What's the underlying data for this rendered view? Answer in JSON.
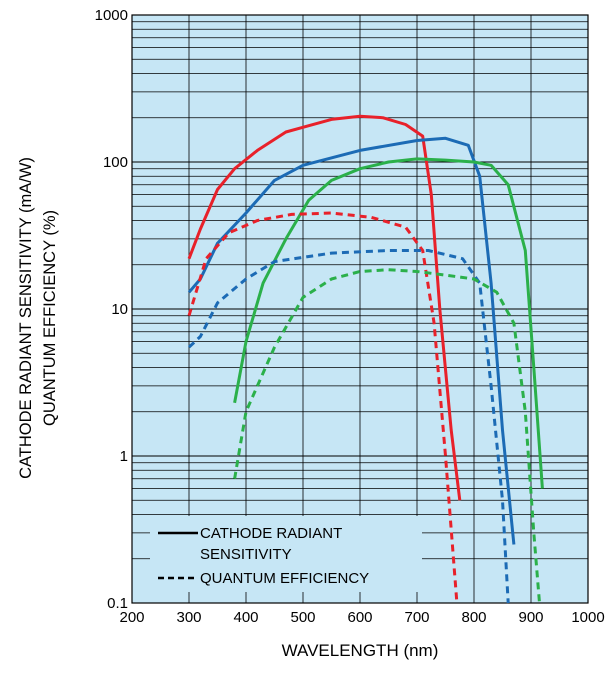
{
  "chart_data": {
    "type": "line",
    "xlabel": "WAVELENGTH (nm)",
    "ylabel_lines": [
      "CATHODE RADIANT SENSITIVITY (mA/W)",
      "QUANTUM EFFICIENCY (%)"
    ],
    "xlim": [
      200,
      1000
    ],
    "ylim": [
      0.1,
      1000
    ],
    "yscale": "log",
    "x_ticks": [
      200,
      300,
      400,
      500,
      600,
      700,
      800,
      900,
      1000
    ],
    "x_tick_labels": [
      "200",
      "300",
      "400",
      "500",
      "600",
      "700",
      "800",
      "900",
      "1000"
    ],
    "y_ticks": [
      0.1,
      1,
      10,
      100,
      1000
    ],
    "y_tick_labels": [
      "0.1",
      "1",
      "10",
      "100",
      "1000"
    ],
    "grid": true,
    "plot_background": "#c6e6f5",
    "legend": {
      "placement": "bottom-left",
      "entries": [
        {
          "style": "solid",
          "lines": [
            "CATHODE RADIANT",
            "SENSITIVITY"
          ]
        },
        {
          "style": "dashed",
          "lines": [
            "QUANTUM EFFICIENCY"
          ]
        }
      ]
    },
    "series": [
      {
        "style": "solid",
        "color": "#e8212a",
        "x": [
          300,
          320,
          350,
          380,
          420,
          470,
          550,
          600,
          640,
          680,
          710,
          725,
          740,
          760,
          775
        ],
        "y": [
          22,
          35,
          65,
          90,
          120,
          160,
          195,
          205,
          200,
          180,
          150,
          60,
          10,
          1.5,
          0.5
        ]
      },
      {
        "style": "solid",
        "color": "#1c6bb5",
        "x": [
          300,
          320,
          350,
          400,
          450,
          500,
          600,
          700,
          750,
          790,
          810,
          830,
          850,
          870
        ],
        "y": [
          13,
          16,
          28,
          45,
          75,
          95,
          120,
          140,
          145,
          130,
          80,
          15,
          1.5,
          0.25
        ]
      },
      {
        "style": "solid",
        "color": "#2bb04a",
        "x": [
          380,
          400,
          430,
          470,
          510,
          550,
          600,
          650,
          700,
          750,
          800,
          830,
          860,
          890,
          905,
          920
        ],
        "y": [
          2.3,
          6,
          15,
          30,
          55,
          75,
          90,
          100,
          105,
          103,
          100,
          95,
          70,
          25,
          4,
          0.6
        ]
      },
      {
        "style": "dashed",
        "color": "#e8212a",
        "x": [
          300,
          330,
          370,
          420,
          480,
          550,
          620,
          680,
          710,
          730,
          750,
          770
        ],
        "y": [
          9,
          22,
          33,
          40,
          44,
          45,
          42,
          36,
          25,
          8,
          1,
          0.1
        ]
      },
      {
        "style": "dashed",
        "color": "#1c6bb5",
        "x": [
          300,
          320,
          350,
          400,
          450,
          550,
          650,
          720,
          780,
          810,
          830,
          850,
          860
        ],
        "y": [
          5.5,
          6.5,
          11,
          16,
          21,
          24,
          25,
          25,
          22,
          15,
          3,
          0.5,
          0.1
        ]
      },
      {
        "style": "dashed",
        "color": "#2bb04a",
        "x": [
          380,
          400,
          450,
          500,
          550,
          600,
          650,
          700,
          750,
          800,
          840,
          870,
          890,
          905,
          915
        ],
        "y": [
          0.7,
          2,
          5.5,
          12,
          16,
          18,
          18.5,
          18,
          17,
          16,
          13,
          8,
          2,
          0.3,
          0.1
        ]
      }
    ]
  }
}
